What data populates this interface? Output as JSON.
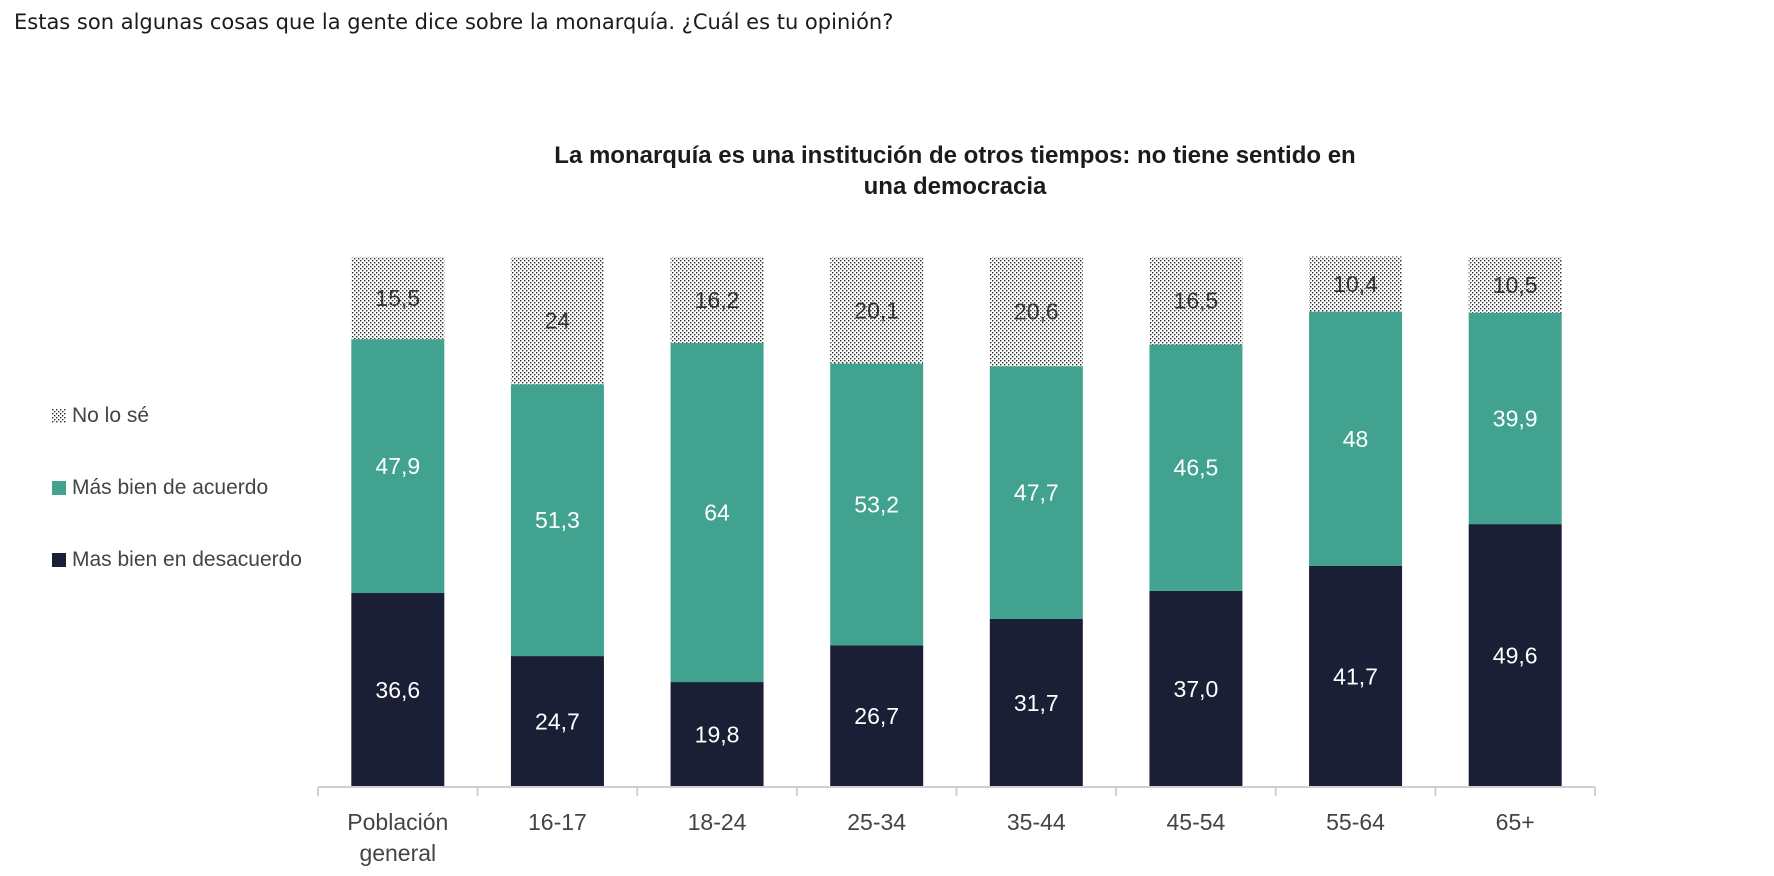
{
  "header": {
    "question": "Estas son algunas cosas que la gente dice sobre la monarquía. ¿Cuál es tu opinión?"
  },
  "colors": {
    "no_se": "#9a9a9a",
    "acuerdo": "#41a38f",
    "desacuerdo": "#1b1f36",
    "axis": "#d0d0d0"
  },
  "chart_data": {
    "type": "bar",
    "stacked": true,
    "title": "La monarquía es una institución de otros tiempos: no tiene sentido en una democracia",
    "title_lines": [
      "La monarquía es una institución de otros tiempos: no tiene sentido en",
      "una democracia"
    ],
    "xlabel": "",
    "ylabel": "",
    "legend_position": "left",
    "categories": [
      "Población general",
      "16-17",
      "18-24",
      "25-34",
      "35-44",
      "45-54",
      "55-64",
      "65+"
    ],
    "category_lines": [
      [
        "Población",
        "general"
      ],
      [
        "16-17"
      ],
      [
        "18-24"
      ],
      [
        "25-34"
      ],
      [
        "35-44"
      ],
      [
        "45-54"
      ],
      [
        "55-64"
      ],
      [
        "65+"
      ]
    ],
    "ylim": [
      0,
      100
    ],
    "series": [
      {
        "name": "Mas bien en desacuerdo",
        "values": [
          36.6,
          24.7,
          19.8,
          26.7,
          31.7,
          37.0,
          41.7,
          49.6
        ],
        "labels": [
          "36,6",
          "24,7",
          "19,8",
          "26,7",
          "31,7",
          "37,0",
          "41,7",
          "49,6"
        ],
        "color": "#1b1f36",
        "pattern": "solid",
        "label_color": "#ffffff"
      },
      {
        "name": "Más bien de acuerdo",
        "values": [
          47.9,
          51.3,
          64,
          53.2,
          47.7,
          46.5,
          48,
          39.9
        ],
        "labels": [
          "47,9",
          "51,3",
          "64",
          "53,2",
          "47,7",
          "46,5",
          "48",
          "39,9"
        ],
        "color": "#41a38f",
        "pattern": "solid",
        "label_color": "#ffffff"
      },
      {
        "name": "No lo sé",
        "values": [
          15.5,
          24,
          16.2,
          20.1,
          20.6,
          16.5,
          10.4,
          10.5
        ],
        "labels": [
          "15,5",
          "24",
          "16,2",
          "20,1",
          "20,6",
          "16,5",
          "10,4",
          "10,5"
        ],
        "color": "#9a9a9a",
        "pattern": "dots",
        "label_color": "#333333"
      }
    ],
    "legend_order": [
      2,
      1,
      0
    ]
  }
}
